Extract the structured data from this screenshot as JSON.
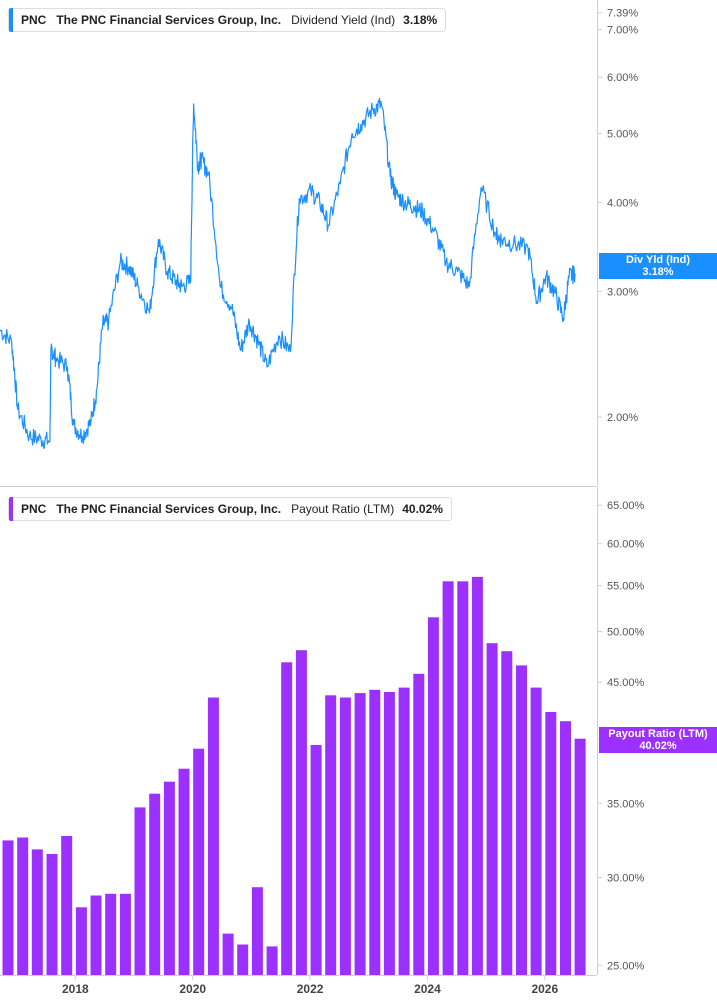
{
  "panels": {
    "top": {
      "ticker": "PNC",
      "company": "The PNC Financial Services Group, Inc.",
      "metric": "Dividend Yield (Ind)",
      "value": "3.18%",
      "tag_label": "Div Yld (Ind)",
      "tag_value": "3.18%",
      "color": "#1a8fff"
    },
    "bottom": {
      "ticker": "PNC",
      "company": "The PNC Financial Services Group, Inc.",
      "metric": "Payout Ratio (LTM)",
      "value": "40.02%",
      "tag_label": "Payout Ratio (LTM)",
      "tag_value": "40.02%",
      "color": "#9b30ff"
    }
  },
  "chart_data": [
    {
      "type": "line",
      "scale": "log",
      "ylim": [
        1.6,
        7.6
      ],
      "y_ticks": [
        {
          "value": 7.39,
          "label": "7.39%"
        },
        {
          "value": 7.0,
          "label": "7.00%"
        },
        {
          "value": 6.0,
          "label": "6.00%"
        },
        {
          "value": 5.0,
          "label": "5.00%"
        },
        {
          "value": 4.0,
          "label": "4.00%"
        },
        {
          "value": 3.0,
          "label": "3.00%"
        },
        {
          "value": 2.0,
          "label": "2.00%"
        }
      ],
      "series": [
        {
          "name": "Dividend Yield (Ind)",
          "color": "#1a8fff",
          "x": [
            2016.75,
            2016.95,
            2017.05,
            2017.25,
            2017.45,
            2017.6,
            2017.62,
            2017.7,
            2017.9,
            2018.0,
            2018.15,
            2018.3,
            2018.4,
            2018.5,
            2018.6,
            2018.8,
            2018.95,
            2019.1,
            2019.3,
            2019.45,
            2019.6,
            2019.75,
            2019.85,
            2020.0,
            2020.05,
            2020.12,
            2020.18,
            2020.3,
            2020.5,
            2020.7,
            2020.85,
            2021.0,
            2021.15,
            2021.3,
            2021.5,
            2021.7,
            2021.85,
            2022.05,
            2022.2,
            2022.35,
            2022.55,
            2022.75,
            2022.9,
            2023.1,
            2023.25,
            2023.4,
            2023.5,
            2023.65,
            2023.8,
            2023.95,
            2024.15,
            2024.35,
            2024.55,
            2024.75,
            2024.95,
            2025.2,
            2025.3,
            2025.5,
            2025.75,
            2025.9,
            2026.05,
            2026.2,
            2026.35,
            2026.45,
            2026.55
          ],
          "y": [
            2.65,
            2.55,
            2.05,
            1.88,
            1.86,
            1.85,
            2.5,
            2.42,
            2.35,
            1.95,
            1.88,
            1.97,
            2.18,
            2.7,
            2.72,
            3.3,
            3.25,
            3.05,
            2.8,
            3.55,
            3.2,
            3.1,
            3.05,
            3.1,
            5.5,
            4.5,
            4.6,
            4.4,
            3.05,
            2.85,
            2.48,
            2.72,
            2.55,
            2.35,
            2.6,
            2.47,
            4.05,
            4.15,
            4.0,
            3.72,
            4.25,
            5.0,
            5.15,
            5.4,
            5.5,
            4.35,
            4.1,
            4.0,
            3.95,
            3.88,
            3.65,
            3.3,
            3.2,
            3.05,
            4.2,
            3.6,
            3.55,
            3.5,
            3.45,
            2.9,
            3.15,
            3.0,
            2.75,
            3.15,
            3.18
          ]
        }
      ]
    },
    {
      "type": "bar",
      "scale": "log",
      "ylim": [
        24.5,
        67.5
      ],
      "y_ticks": [
        {
          "value": 65,
          "label": "65.00%"
        },
        {
          "value": 60,
          "label": "60.00%"
        },
        {
          "value": 55,
          "label": "55.00%"
        },
        {
          "value": 50,
          "label": "50.00%"
        },
        {
          "value": 45,
          "label": "45.00%"
        },
        {
          "value": 40,
          "label": "40.00%"
        },
        {
          "value": 35,
          "label": "35.00%"
        },
        {
          "value": 30,
          "label": "30.00%"
        },
        {
          "value": 25,
          "label": "25.00%"
        }
      ],
      "x_ticks": [
        "2018",
        "2020",
        "2022",
        "2024",
        "2026"
      ],
      "x_tick_values": [
        2018,
        2020,
        2022,
        2024,
        2026
      ],
      "series": [
        {
          "name": "Payout Ratio (LTM)",
          "color": "#9b30ff",
          "x": [
            2016.75,
            2017.0,
            2017.25,
            2017.5,
            2017.75,
            2018.0,
            2018.25,
            2018.5,
            2018.75,
            2019.0,
            2019.25,
            2019.5,
            2019.75,
            2020.0,
            2020.25,
            2020.5,
            2020.75,
            2021.0,
            2021.25,
            2021.5,
            2021.75,
            2022.0,
            2022.25,
            2022.5,
            2022.75,
            2023.0,
            2023.25,
            2023.5,
            2023.75,
            2024.0,
            2024.25,
            2024.5,
            2024.75,
            2025.0,
            2025.25,
            2025.5,
            2025.75,
            2026.0,
            2026.25,
            2026.5
          ],
          "values": [
            32.4,
            32.6,
            31.8,
            31.5,
            32.7,
            28.2,
            28.9,
            29.0,
            29.0,
            34.7,
            35.7,
            36.6,
            37.6,
            39.2,
            43.6,
            26.7,
            26.1,
            29.4,
            26.0,
            46.9,
            48.1,
            39.5,
            43.8,
            43.6,
            44.0,
            44.3,
            44.1,
            44.5,
            45.8,
            51.5,
            55.5,
            55.5,
            56.0,
            48.8,
            48.0,
            46.6,
            44.5,
            42.3,
            41.5,
            40.02
          ]
        }
      ]
    }
  ]
}
